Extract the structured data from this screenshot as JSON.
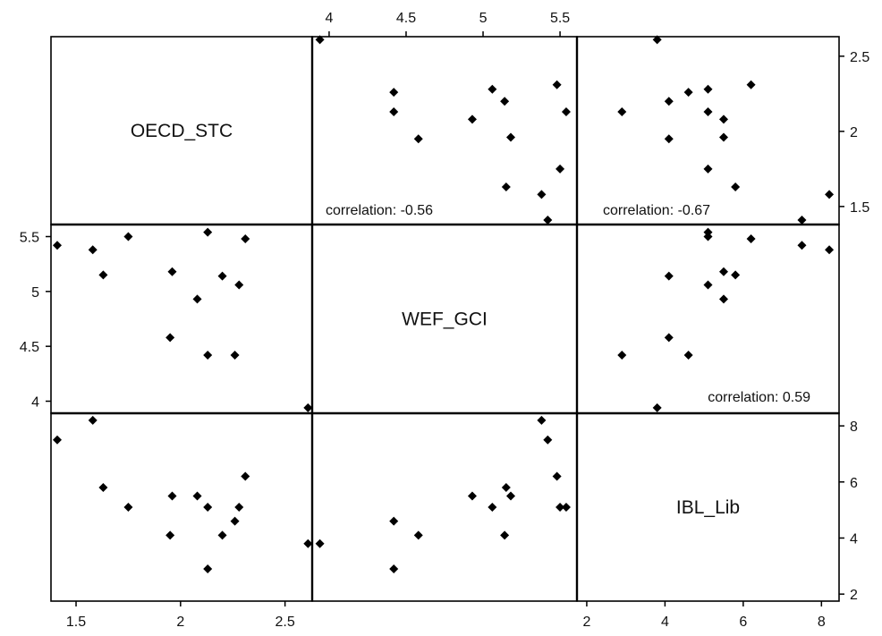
{
  "chart_data": {
    "type": "scatter",
    "kind": "scatterplot-matrix",
    "variables": [
      "OECD_STC",
      "WEF_GCI",
      "IBL_Lib"
    ],
    "axes": {
      "OECD_STC": {
        "range": [
          1.38,
          2.63
        ],
        "ticks": [
          {
            "v": 1.5,
            "label": "1.5"
          },
          {
            "v": 2,
            "label": "2"
          },
          {
            "v": 2.5,
            "label": "2.5"
          }
        ]
      },
      "WEF_GCI": {
        "range": [
          3.89,
          5.61
        ],
        "ticks": [
          {
            "v": 4,
            "label": "4"
          },
          {
            "v": 4.5,
            "label": "4.5"
          },
          {
            "v": 5,
            "label": "5"
          },
          {
            "v": 5.5,
            "label": "5.5"
          }
        ]
      },
      "IBL_Lib": {
        "range": [
          1.75,
          8.45
        ],
        "ticks": [
          {
            "v": 2,
            "label": "2"
          },
          {
            "v": 4,
            "label": "4"
          },
          {
            "v": 6,
            "label": "6"
          },
          {
            "v": 8,
            "label": "8"
          }
        ]
      }
    },
    "points": [
      {
        "OECD_STC": 1.41,
        "WEF_GCI": 5.42,
        "IBL_Lib": 7.5
      },
      {
        "OECD_STC": 1.58,
        "WEF_GCI": 5.38,
        "IBL_Lib": 8.2
      },
      {
        "OECD_STC": 1.63,
        "WEF_GCI": 5.15,
        "IBL_Lib": 5.8
      },
      {
        "OECD_STC": 1.75,
        "WEF_GCI": 5.5,
        "IBL_Lib": 5.1
      },
      {
        "OECD_STC": 1.96,
        "WEF_GCI": 5.18,
        "IBL_Lib": 5.5
      },
      {
        "OECD_STC": 1.95,
        "WEF_GCI": 4.58,
        "IBL_Lib": 4.1
      },
      {
        "OECD_STC": 2.08,
        "WEF_GCI": 4.93,
        "IBL_Lib": 5.5
      },
      {
        "OECD_STC": 2.13,
        "WEF_GCI": 5.54,
        "IBL_Lib": 5.1
      },
      {
        "OECD_STC": 2.13,
        "WEF_GCI": 4.42,
        "IBL_Lib": 2.9
      },
      {
        "OECD_STC": 2.2,
        "WEF_GCI": 5.14,
        "IBL_Lib": 4.1
      },
      {
        "OECD_STC": 2.26,
        "WEF_GCI": 4.42,
        "IBL_Lib": 4.6
      },
      {
        "OECD_STC": 2.28,
        "WEF_GCI": 5.06,
        "IBL_Lib": 5.1
      },
      {
        "OECD_STC": 2.31,
        "WEF_GCI": 5.48,
        "IBL_Lib": 6.2
      },
      {
        "OECD_STC": 2.61,
        "WEF_GCI": 3.94,
        "IBL_Lib": 3.8
      }
    ],
    "correlations": [
      {
        "pair": [
          "OECD_STC",
          "WEF_GCI"
        ],
        "label": "correlation: -0.56"
      },
      {
        "pair": [
          "OECD_STC",
          "IBL_Lib"
        ],
        "label": "correlation: -0.67"
      },
      {
        "pair": [
          "WEF_GCI",
          "IBL_Lib"
        ],
        "label": "correlation: 0.59"
      }
    ],
    "grid": false
  }
}
